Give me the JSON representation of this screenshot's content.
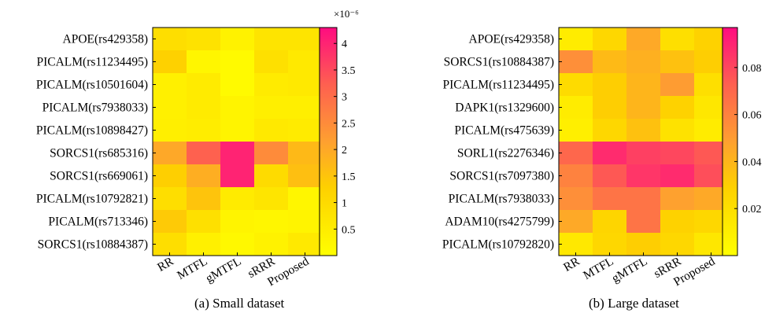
{
  "chart_data": [
    {
      "type": "heatmap",
      "caption": "(a)  Small dataset",
      "rows": [
        "APOE(rs429358)",
        "PICALM(rs11234495)",
        "PICALM(rs10501604)",
        "PICALM(rs7938033)",
        "PICALM(rs10898427)",
        "SORCS1(rs685316)",
        "SORCS1(rs669061)",
        "PICALM(rs10792821)",
        "PICALM(rs713346)",
        "SORCS1(rs10884387)"
      ],
      "columns": [
        "RR",
        "MTFL",
        "gMTFL",
        "sRRR",
        "Proposed"
      ],
      "clim": [
        0,
        4.3e-06
      ],
      "colorbar": {
        "ticks": [
          0.5,
          1,
          1.5,
          2,
          2.5,
          3,
          3.5,
          4
        ],
        "tick_labels": [
          "0.5",
          "1",
          "1.5",
          "2",
          "2.5",
          "3",
          "3.5",
          "4"
        ],
        "multiplier": "×10⁻⁶",
        "scale": 1e-06
      },
      "values": [
        [
          9e-07,
          8e-07,
          3.5e-07,
          7.5e-07,
          7.5e-07
        ],
        [
          1.25e-06,
          2.5e-07,
          1.5e-07,
          8.5e-07,
          6e-07
        ],
        [
          4e-07,
          5.5e-07,
          1.5e-07,
          5.5e-07,
          6e-07
        ],
        [
          4e-07,
          5.5e-07,
          3e-07,
          4.5e-07,
          4.5e-07
        ],
        [
          4.5e-07,
          5e-07,
          3e-07,
          6e-07,
          5.5e-07
        ],
        [
          2e-06,
          3.2e-06,
          4e-06,
          2.5e-06,
          1.7e-06
        ],
        [
          1.3e-06,
          1.9e-06,
          4e-06,
          1e-06,
          1.6e-06
        ],
        [
          9e-07,
          1.5e-06,
          5.5e-07,
          7e-07,
          2.5e-07
        ],
        [
          1.4e-06,
          8.5e-07,
          3e-07,
          2.5e-07,
          3e-07
        ],
        [
          9e-07,
          4e-07,
          2e-07,
          3.5e-07,
          6e-07
        ]
      ]
    },
    {
      "type": "heatmap",
      "caption": "(b)  Large dataset",
      "rows": [
        "APOE(rs429358)",
        "SORCS1(rs10884387)",
        "PICALM(rs11234495)",
        "DAPK1(rs1329600)",
        "PICALM(rs475639)",
        "SORL1(rs2276346)",
        "SORCS1(rs7097380)",
        "PICALM(rs7938033)",
        "ADAM10(rs4275799)",
        "PICALM(rs10792820)"
      ],
      "columns": [
        "RR",
        "MTFL",
        "gMTFL",
        "sRRR",
        "Proposed"
      ],
      "clim": [
        0,
        0.097
      ],
      "colorbar": {
        "ticks": [
          0.02,
          0.04,
          0.06,
          0.08
        ],
        "tick_labels": [
          "0.02",
          "0.04",
          "0.06",
          "0.08"
        ],
        "multiplier": "",
        "scale": 1
      },
      "values": [
        [
          0.012,
          0.025,
          0.045,
          0.02,
          0.028
        ],
        [
          0.055,
          0.038,
          0.042,
          0.035,
          0.03
        ],
        [
          0.022,
          0.03,
          0.04,
          0.05,
          0.02
        ],
        [
          0.012,
          0.03,
          0.04,
          0.028,
          0.015
        ],
        [
          0.01,
          0.025,
          0.035,
          0.018,
          0.012
        ],
        [
          0.07,
          0.088,
          0.082,
          0.08,
          0.075
        ],
        [
          0.06,
          0.075,
          0.085,
          0.088,
          0.078
        ],
        [
          0.055,
          0.065,
          0.065,
          0.048,
          0.045
        ],
        [
          0.045,
          0.026,
          0.065,
          0.028,
          0.025
        ],
        [
          0.014,
          0.025,
          0.03,
          0.025,
          0.015
        ]
      ]
    }
  ]
}
